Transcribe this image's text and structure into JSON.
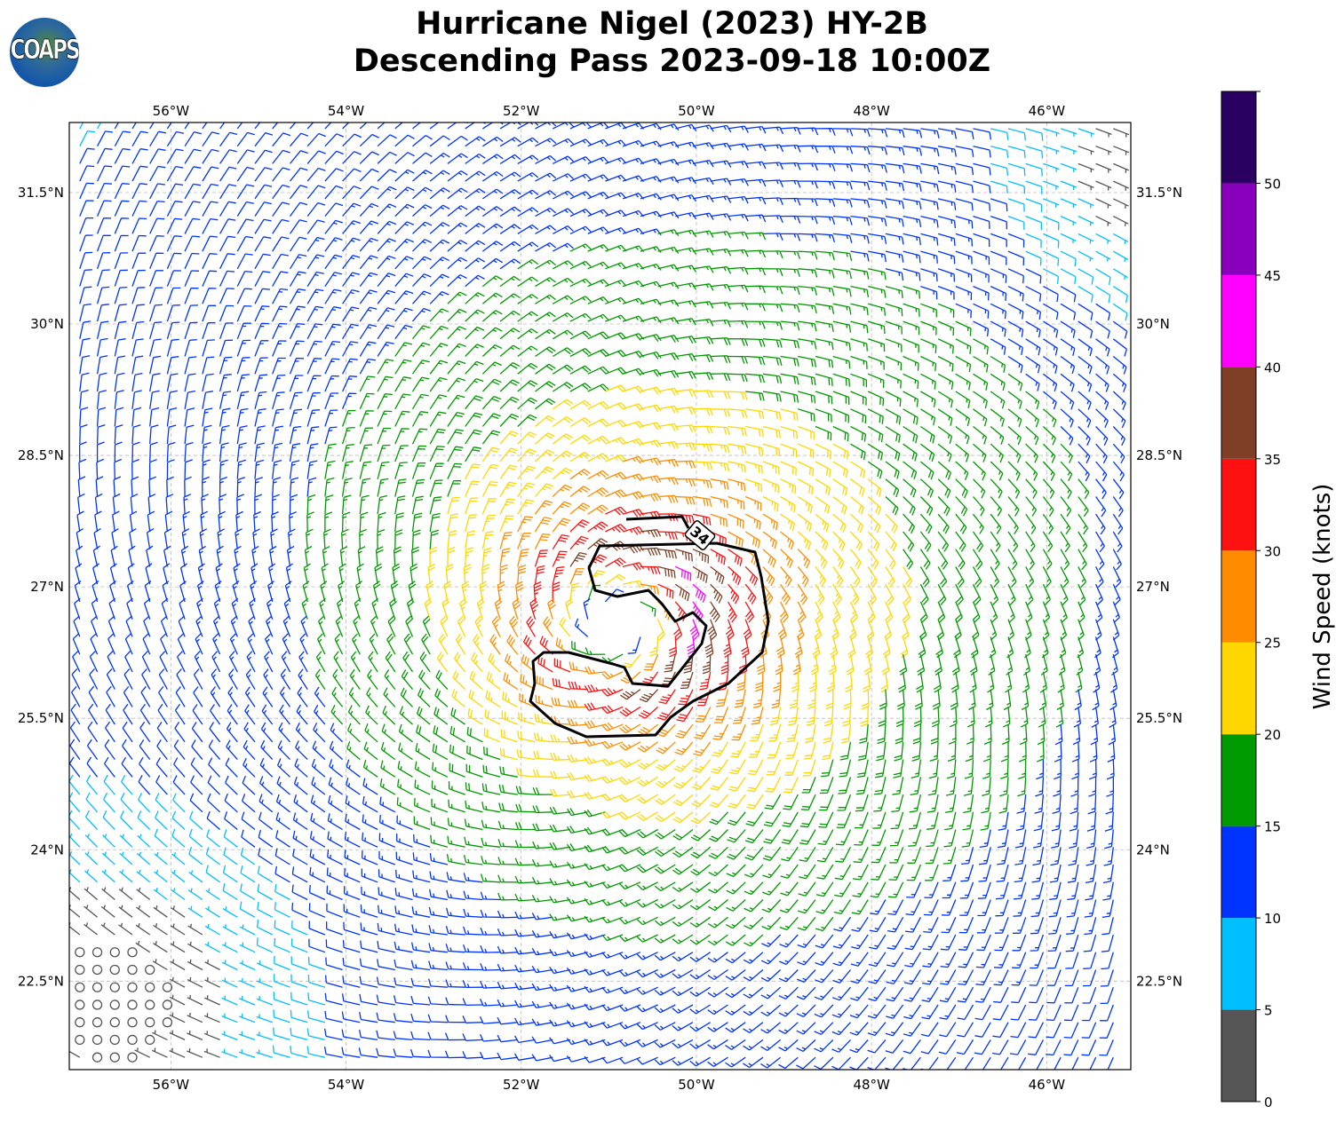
{
  "title": {
    "line1": "Hurricane Nigel (2023) HY-2B",
    "line2": "Descending Pass 2023-09-18 10:00Z"
  },
  "logo": {
    "text": "COAPS"
  },
  "chart_data": {
    "type": "wind_barbs",
    "title": "Hurricane Nigel (2023) HY-2B Descending Pass 2023-09-18 10:00Z",
    "lon_ticks": [
      -56,
      -54,
      -52,
      -50,
      -48,
      -46
    ],
    "lon_tick_labels": [
      "56°W",
      "54°W",
      "52°W",
      "50°W",
      "48°W",
      "46°W"
    ],
    "lat_ticks": [
      31.5,
      30,
      28.5,
      27,
      25.5,
      24,
      22.5
    ],
    "lat_tick_labels": [
      "31.5°N",
      "30°N",
      "28.5°N",
      "27°N",
      "25.5°N",
      "24°N",
      "22.5°N"
    ],
    "lon_range": [
      -57.16,
      -45.04
    ],
    "lat_range": [
      21.49,
      32.3
    ],
    "grid": true,
    "storm_center": {
      "lon": -50.9,
      "lat": 26.6
    },
    "contour": {
      "level_kt": 34,
      "label": "34"
    },
    "colorbar": {
      "label": "Wind Speed (knots)",
      "bounds": [
        0,
        5,
        10,
        15,
        20,
        25,
        30,
        35,
        40,
        45,
        50,
        55
      ],
      "tick_labels": [
        "0",
        "5",
        "10",
        "15",
        "20",
        "25",
        "30",
        "35",
        "40",
        "45",
        "50"
      ],
      "colors": [
        "#555555",
        "#00bfff",
        "#0033ff",
        "#009900",
        "#ffd700",
        "#ff8c00",
        "#ff1111",
        "#7f3f26",
        "#ff00ff",
        "#8800bb",
        "#2a0060"
      ]
    }
  }
}
